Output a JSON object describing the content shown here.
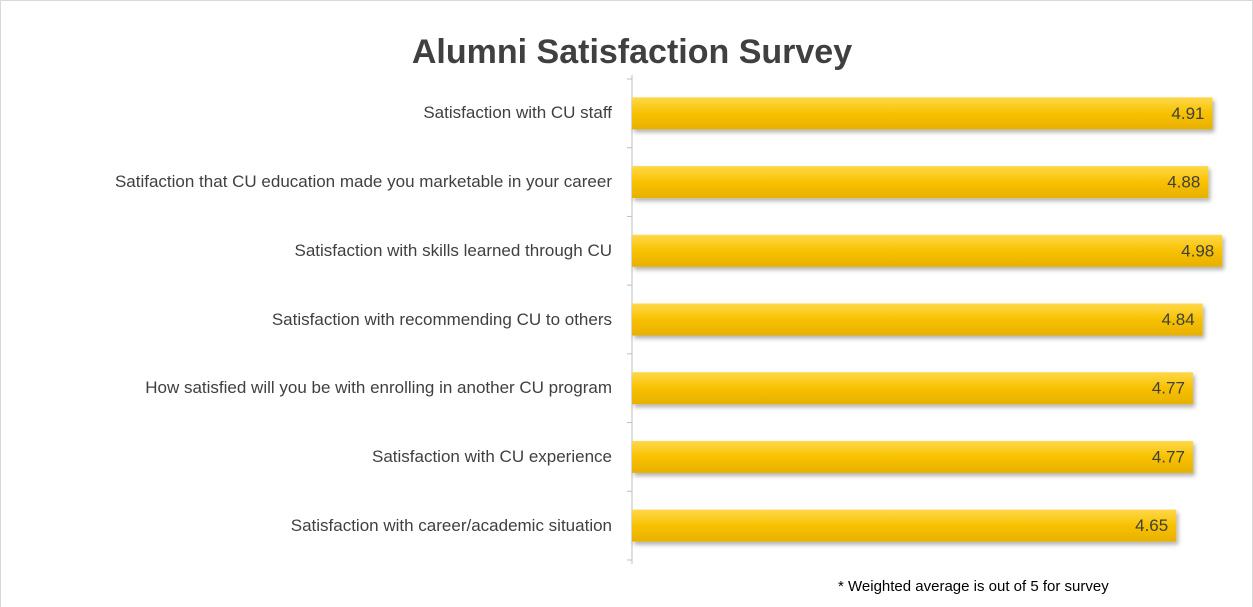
{
  "chart_data": {
    "type": "bar",
    "orientation": "horizontal",
    "title": "Alumni Satisfaction Survey",
    "categories": [
      "Satisfaction with CU staff",
      "Satifaction that CU education made you marketable in your career",
      "Satisfaction with skills learned through CU",
      "Satisfaction with recommending CU to others",
      "How satisfied will you be with enrolling in another CU program",
      "Satisfaction with CU experience",
      "Satisfaction with career/academic situation"
    ],
    "values": [
      4.91,
      4.88,
      4.98,
      4.84,
      4.77,
      4.77,
      4.65
    ],
    "color": "#f7c100",
    "xlim": [
      0.75,
      5.1
    ],
    "note": "* Weighted average is out of 5 for survey"
  }
}
